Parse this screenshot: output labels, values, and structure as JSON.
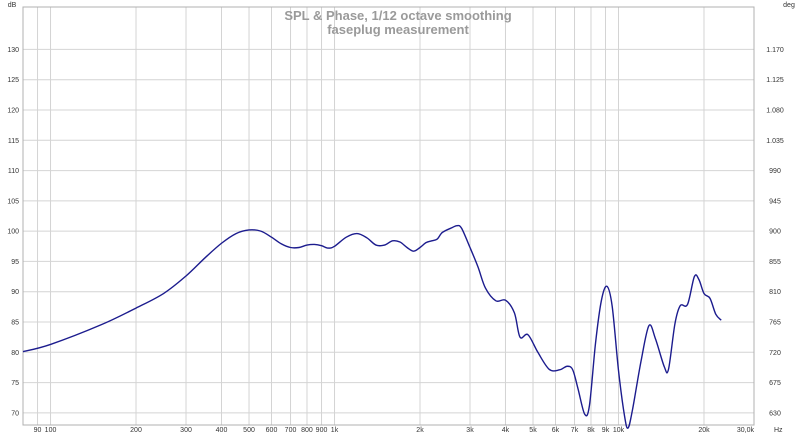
{
  "chart_data": {
    "type": "line",
    "title": "SPL & Phase, 1/12 octave smoothing",
    "subtitle": "faseplug measurement",
    "x_scale": "log",
    "xlim": [
      80,
      30000
    ],
    "ylim": [
      68,
      137
    ],
    "y2lim": [
      612,
      1233
    ],
    "y_unit": "dB",
    "y2_unit": "deg",
    "x_unit": "Hz",
    "x_ticks": [
      {
        "value": 90,
        "label": "90"
      },
      {
        "value": 100,
        "label": "100"
      },
      {
        "value": 200,
        "label": "200"
      },
      {
        "value": 300,
        "label": "300"
      },
      {
        "value": 400,
        "label": "400"
      },
      {
        "value": 500,
        "label": "500"
      },
      {
        "value": 600,
        "label": "600"
      },
      {
        "value": 700,
        "label": "700"
      },
      {
        "value": 800,
        "label": "800"
      },
      {
        "value": 900,
        "label": "900"
      },
      {
        "value": 1000,
        "label": "1k"
      },
      {
        "value": 2000,
        "label": "2k"
      },
      {
        "value": 3000,
        "label": "3k"
      },
      {
        "value": 4000,
        "label": "4k"
      },
      {
        "value": 5000,
        "label": "5k"
      },
      {
        "value": 6000,
        "label": "6k"
      },
      {
        "value": 7000,
        "label": "7k"
      },
      {
        "value": 8000,
        "label": "8k"
      },
      {
        "value": 9000,
        "label": "9k"
      },
      {
        "value": 10000,
        "label": "10k"
      },
      {
        "value": 20000,
        "label": "20k"
      },
      {
        "value": 30000,
        "label": "30,0k"
      }
    ],
    "y_ticks": [
      70,
      75,
      80,
      85,
      90,
      95,
      100,
      105,
      110,
      115,
      120,
      125,
      130
    ],
    "y2_ticks": [
      {
        "value": 630,
        "label": "630"
      },
      {
        "value": 675,
        "label": "675"
      },
      {
        "value": 720,
        "label": "720"
      },
      {
        "value": 765,
        "label": "765"
      },
      {
        "value": 810,
        "label": "810"
      },
      {
        "value": 855,
        "label": "855"
      },
      {
        "value": 900,
        "label": "900"
      },
      {
        "value": 945,
        "label": "945"
      },
      {
        "value": 990,
        "label": "990"
      },
      {
        "value": 1035,
        "label": "1.035"
      },
      {
        "value": 1080,
        "label": "1.080"
      },
      {
        "value": 1125,
        "label": "1.125"
      },
      {
        "value": 1170,
        "label": "1.170"
      }
    ],
    "grid": true,
    "series": [
      {
        "color": "#1c1c8e",
        "points": [
          [
            80,
            80.1
          ],
          [
            100,
            81.3
          ],
          [
            150,
            84.5
          ],
          [
            200,
            87.3
          ],
          [
            250,
            89.7
          ],
          [
            300,
            92.6
          ],
          [
            350,
            95.6
          ],
          [
            400,
            98.0
          ],
          [
            450,
            99.6
          ],
          [
            500,
            100.2
          ],
          [
            550,
            100.0
          ],
          [
            600,
            99.0
          ],
          [
            650,
            97.9
          ],
          [
            700,
            97.3
          ],
          [
            750,
            97.3
          ],
          [
            800,
            97.7
          ],
          [
            850,
            97.8
          ],
          [
            900,
            97.6
          ],
          [
            950,
            97.2
          ],
          [
            1000,
            97.5
          ],
          [
            1100,
            99.0
          ],
          [
            1200,
            99.6
          ],
          [
            1300,
            98.9
          ],
          [
            1400,
            97.7
          ],
          [
            1500,
            97.7
          ],
          [
            1600,
            98.4
          ],
          [
            1700,
            98.2
          ],
          [
            1800,
            97.3
          ],
          [
            1900,
            96.7
          ],
          [
            2000,
            97.3
          ],
          [
            2100,
            98.1
          ],
          [
            2200,
            98.4
          ],
          [
            2300,
            98.7
          ],
          [
            2400,
            99.8
          ],
          [
            2600,
            100.6
          ],
          [
            2700,
            100.9
          ],
          [
            2800,
            100.5
          ],
          [
            3000,
            97.3
          ],
          [
            3200,
            94.1
          ],
          [
            3400,
            90.6
          ],
          [
            3700,
            88.5
          ],
          [
            4000,
            88.6
          ],
          [
            4300,
            86.5
          ],
          [
            4500,
            82.5
          ],
          [
            4800,
            82.9
          ],
          [
            5200,
            80.0
          ],
          [
            5700,
            77.2
          ],
          [
            6200,
            77.1
          ],
          [
            6600,
            77.7
          ],
          [
            6900,
            77.1
          ],
          [
            7200,
            74.0
          ],
          [
            7600,
            69.8
          ],
          [
            7900,
            71.2
          ],
          [
            8300,
            81.5
          ],
          [
            8700,
            88.5
          ],
          [
            9100,
            90.9
          ],
          [
            9500,
            87.6
          ],
          [
            10000,
            77.0
          ],
          [
            10500,
            69.5
          ],
          [
            10800,
            67.5
          ],
          [
            11200,
            70.5
          ],
          [
            12000,
            78.5
          ],
          [
            12800,
            84.4
          ],
          [
            13500,
            82.2
          ],
          [
            14500,
            77.6
          ],
          [
            15000,
            77.2
          ],
          [
            15800,
            84.7
          ],
          [
            16500,
            87.7
          ],
          [
            17500,
            87.9
          ],
          [
            18500,
            92.5
          ],
          [
            19200,
            92.0
          ],
          [
            20000,
            89.7
          ],
          [
            21000,
            88.9
          ],
          [
            22000,
            86.3
          ],
          [
            23000,
            85.3
          ]
        ]
      }
    ]
  }
}
